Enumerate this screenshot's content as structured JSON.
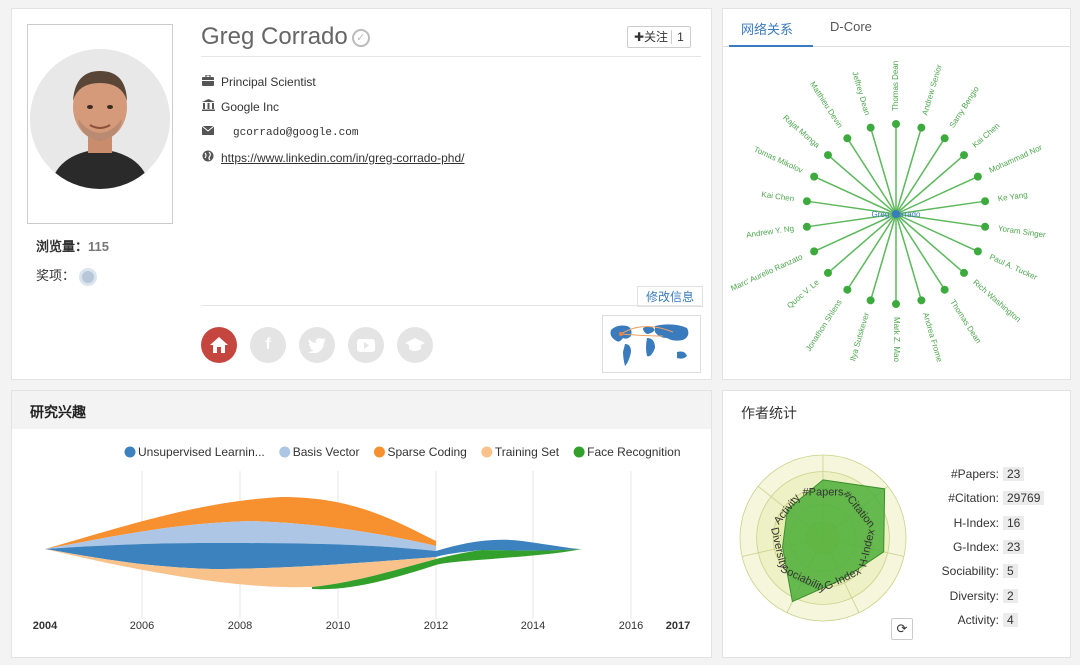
{
  "profile": {
    "name": "Greg Corrado",
    "follow_label": "✚关注",
    "follow_count": "1",
    "title": "Principal Scientist",
    "org": "Google Inc",
    "email": "gcorrado@google.com",
    "homepage": "https://www.linkedin.com/in/greg-corrado-phd/",
    "views_label": "浏览量：",
    "views_value": "115",
    "awards_label": "奖项：",
    "edit_label": "修改信息"
  },
  "network": {
    "tabs": [
      "网络关系",
      "D-Core"
    ],
    "center": "Greg Corrado",
    "coauthors": [
      "Thomas Dean",
      "Andrew Senior",
      "Samy Bengio",
      "Kai Chen",
      "Mohammad Nor",
      "Ke Yang",
      "Yoram Singer",
      "Paul A. Tucker",
      "Rich Washington",
      "Thomas Dean",
      "Andrea Frome",
      "Mark Z. Mao",
      "Ilya Sutskever",
      "Jonathon Shlens",
      "Quoc V. Le",
      "Marc' Aurelio Ranzato",
      "Andrew Y. Ng",
      "Kai Chen",
      "Tomas Mikolov",
      "Rajat Monga",
      "Matthieu Devin",
      "Jeffrey Dean"
    ],
    "colors": {
      "edge": "#5cb85c",
      "node": "#3daa3d",
      "label": "#4ea64e",
      "center": "#3a7bbd"
    }
  },
  "interest": {
    "title": "研究兴趣",
    "legend": [
      {
        "name": "Unsupervised Learnin...",
        "color": "#3b82be"
      },
      {
        "name": "Basis Vector",
        "color": "#adc6e6"
      },
      {
        "name": "Sparse Coding",
        "color": "#f7902f"
      },
      {
        "name": "Training Set",
        "color": "#f9c28b"
      },
      {
        "name": "Face Recognition",
        "color": "#33a02c"
      }
    ],
    "years": [
      "2004",
      "2006",
      "2008",
      "2010",
      "2012",
      "2014",
      "2016",
      "2017"
    ]
  },
  "stats": {
    "title": "作者统计",
    "rows": [
      {
        "label": "#Papers:",
        "value": "23"
      },
      {
        "label": "#Citation:",
        "value": "29769"
      },
      {
        "label": "H-Index:",
        "value": "16"
      },
      {
        "label": "G-Index:",
        "value": "23"
      },
      {
        "label": "Sociability:",
        "value": "5"
      },
      {
        "label": "Diversity:",
        "value": "2"
      },
      {
        "label": "Activity:",
        "value": "4"
      }
    ],
    "radar_axes": [
      "#Papers",
      "#Citation",
      "H-Index",
      "G-Index",
      "Sociability",
      "Diversity",
      "Activity"
    ],
    "radar_levels": [
      0.7,
      0.95,
      0.75,
      0.55,
      0.85,
      0.5,
      0.55
    ]
  },
  "icons": {
    "title": "briefcase-icon",
    "org": "bank-icon",
    "email": "envelope-icon",
    "homepage": "globe-icon"
  }
}
